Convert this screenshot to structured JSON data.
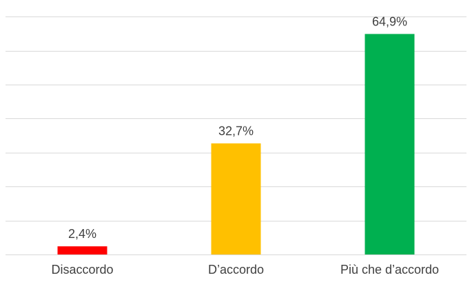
{
  "chart_data": {
    "type": "bar",
    "categories": [
      "Disaccordo",
      "D’accordo",
      "Più che d’accordo"
    ],
    "values": [
      2.4,
      32.7,
      64.9
    ],
    "data_labels": [
      "2,4%",
      "32,7%",
      "64,9%"
    ],
    "colors": [
      "#ff0000",
      "#ffc000",
      "#00b050"
    ],
    "ylim": [
      0,
      70
    ],
    "y_gridline_step": 10,
    "grid": true,
    "title": "",
    "xlabel": "",
    "ylabel": ""
  }
}
